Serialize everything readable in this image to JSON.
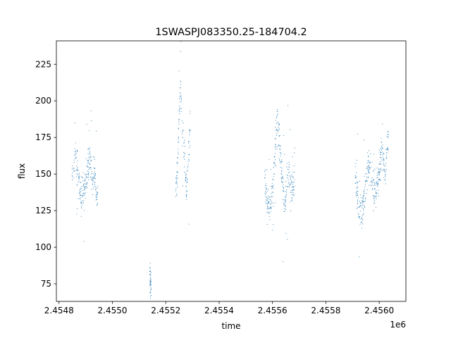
{
  "chart_data": {
    "type": "scatter",
    "title": "1SWASPJ083350.25-184704.2",
    "xlabel": "time",
    "ylabel": "flux",
    "x_offset_label": "1e6",
    "xlim": [
      2.45479,
      2.4561
    ],
    "ylim": [
      63,
      241
    ],
    "x_ticks": [
      2.4548,
      2.455,
      2.4552,
      2.4554,
      2.4556,
      2.4558,
      2.456
    ],
    "x_tick_labels": [
      "2.4548",
      "2.4550",
      "2.4552",
      "2.4554",
      "2.4556",
      "2.4558",
      "2.4560"
    ],
    "y_ticks": [
      75,
      100,
      125,
      150,
      175,
      200,
      225
    ],
    "y_tick_labels": [
      "75",
      "100",
      "125",
      "150",
      "175",
      "200",
      "225"
    ],
    "grid": false,
    "legend": "none",
    "marker_color": "#1f77b4",
    "segments": [
      {
        "x_start": 2.454848,
        "x_end": 2.454945,
        "y_points": [
          [
            2.454848,
            150
          ],
          [
            2.454858,
            162
          ],
          [
            2.45487,
            152
          ],
          [
            2.454882,
            135
          ],
          [
            2.454895,
            140
          ],
          [
            2.454905,
            150
          ],
          [
            2.454915,
            160
          ],
          [
            2.454925,
            145
          ],
          [
            2.454935,
            150
          ],
          [
            2.454945,
            132
          ]
        ]
      },
      {
        "x_start": 2.45514,
        "x_end": 2.455145,
        "y_points": [
          [
            2.45514,
            80
          ],
          [
            2.455142,
            76
          ],
          [
            2.455145,
            72
          ]
        ]
      },
      {
        "x_start": 2.455237,
        "x_end": 2.455292,
        "y_points": [
          [
            2.455237,
            140
          ],
          [
            2.455243,
            150
          ],
          [
            2.45525,
            190
          ],
          [
            2.455256,
            212
          ],
          [
            2.455262,
            180
          ],
          [
            2.45527,
            160
          ],
          [
            2.455278,
            140
          ],
          [
            2.455285,
            160
          ],
          [
            2.455292,
            185
          ]
        ]
      },
      {
        "x_start": 2.45557,
        "x_end": 2.455685,
        "y_points": [
          [
            2.45557,
            150
          ],
          [
            2.45558,
            130
          ],
          [
            2.455592,
            125
          ],
          [
            2.455605,
            150
          ],
          [
            2.455615,
            185
          ],
          [
            2.455625,
            175
          ],
          [
            2.455635,
            150
          ],
          [
            2.455645,
            130
          ],
          [
            2.45566,
            150
          ],
          [
            2.455672,
            140
          ],
          [
            2.455685,
            148
          ]
        ]
      },
      {
        "x_start": 2.45591,
        "x_end": 2.456035,
        "y_points": [
          [
            2.45591,
            150
          ],
          [
            2.455922,
            130
          ],
          [
            2.455935,
            122
          ],
          [
            2.455948,
            140
          ],
          [
            2.45596,
            158
          ],
          [
            2.455972,
            150
          ],
          [
            2.455985,
            135
          ],
          [
            2.455998,
            150
          ],
          [
            2.45601,
            165
          ],
          [
            2.456022,
            150
          ],
          [
            2.456035,
            178
          ]
        ]
      }
    ]
  }
}
